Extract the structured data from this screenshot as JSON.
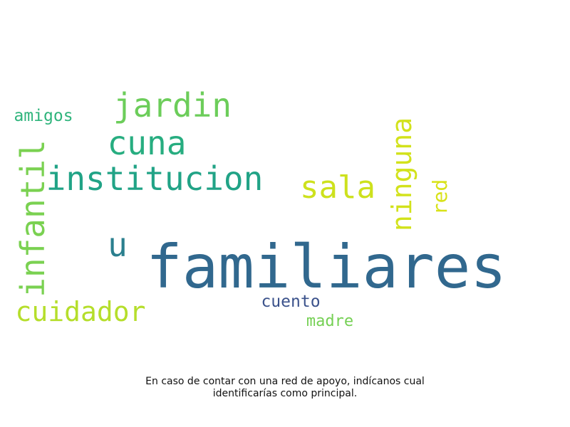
{
  "caption": {
    "line1": "En caso de contar con una red de apoyo, indícanos cual",
    "line2": "identificarías como principal."
  },
  "words": [
    {
      "key": "familiares",
      "text": "familiares",
      "color": "#31688e"
    },
    {
      "key": "institucion",
      "text": "institucion",
      "color": "#21a386"
    },
    {
      "key": "cuna",
      "text": "cuna",
      "color": "#27ad80"
    },
    {
      "key": "jardin",
      "text": "jardin",
      "color": "#6ccd5a"
    },
    {
      "key": "infantil",
      "text": "infantil",
      "color": "#7ad151"
    },
    {
      "key": "cuidador",
      "text": "cuidador",
      "color": "#b5de2b"
    },
    {
      "key": "sala",
      "text": "sala",
      "color": "#cde11d"
    },
    {
      "key": "ninguna",
      "text": "ninguna",
      "color": "#d2e21b"
    },
    {
      "key": "red",
      "text": "red",
      "color": "#d8e219"
    },
    {
      "key": "u",
      "text": "u",
      "color": "#2a7f8e"
    },
    {
      "key": "amigos",
      "text": "amigos",
      "color": "#2fb47c"
    },
    {
      "key": "cuento",
      "text": "cuento",
      "color": "#3b528b"
    },
    {
      "key": "madre",
      "text": "madre",
      "color": "#75d054"
    }
  ]
}
